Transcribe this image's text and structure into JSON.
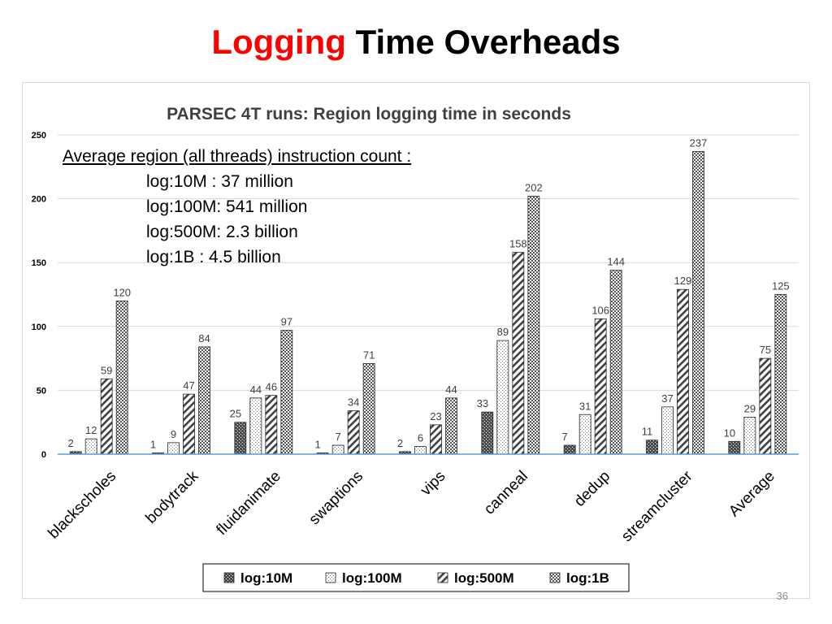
{
  "slide": {
    "title_highlight": "Logging",
    "title_rest": "Time Overheads",
    "page_number": "36"
  },
  "annotation": {
    "heading": "Average region  (all threads) instruction count :",
    "lines": [
      "log:10M : 37 million",
      "log:100M: 541 million",
      "log:500M: 2.3 billion",
      "log:1B : 4.5 billion"
    ]
  },
  "chart_data": {
    "type": "bar",
    "title": "PARSEC 4T runs: Region logging time in seconds",
    "xlabel": "",
    "ylabel": "",
    "ylim": [
      0,
      250
    ],
    "yticks": [
      0,
      50,
      100,
      150,
      200,
      250
    ],
    "grid": true,
    "legend_position": "bottom",
    "categories": [
      "blackscholes",
      "bodytrack",
      "fluidanimate",
      "swaptions",
      "vips",
      "canneal",
      "dedup",
      "streamcluster",
      "Average"
    ],
    "series": [
      {
        "name": "log:10M",
        "pattern": "dark-dots",
        "values": [
          2,
          1,
          25,
          1,
          2,
          33,
          7,
          11,
          10
        ]
      },
      {
        "name": "log:100M",
        "pattern": "light-dots",
        "values": [
          12,
          9,
          44,
          7,
          6,
          89,
          31,
          37,
          29
        ]
      },
      {
        "name": "log:500M",
        "pattern": "diagonal",
        "values": [
          59,
          47,
          46,
          34,
          23,
          158,
          106,
          129,
          75
        ]
      },
      {
        "name": "log:1B",
        "pattern": "checker",
        "values": [
          120,
          84,
          97,
          71,
          44,
          202,
          144,
          237,
          125
        ]
      }
    ]
  }
}
